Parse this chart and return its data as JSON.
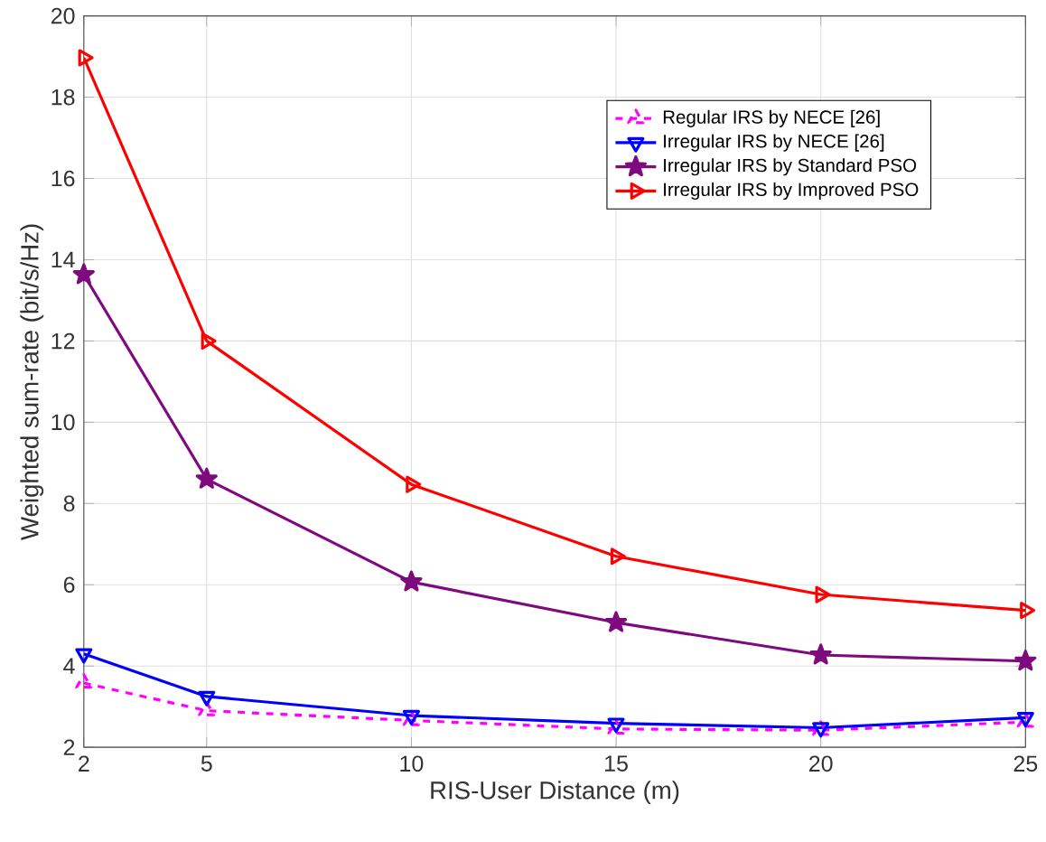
{
  "chart_data": {
    "type": "line",
    "xlabel": "RIS-User Distance (m)",
    "ylabel": "Weighted sum-rate (bit/s/Hz)",
    "x": [
      2,
      5,
      10,
      15,
      20,
      25
    ],
    "series": [
      {
        "name": "Regular IRS by NECE [26]",
        "color": "#ff00ff",
        "marker": "triangle",
        "line_style": "dashed",
        "values": [
          3.58,
          2.9,
          2.66,
          2.45,
          2.42,
          2.62
        ]
      },
      {
        "name": "Irregular IRS by NECE [26]",
        "color": "#0000ff",
        "marker": "triangle-down",
        "line_style": "solid",
        "values": [
          4.3,
          3.25,
          2.78,
          2.59,
          2.48,
          2.73
        ]
      },
      {
        "name": "Irregular IRS by Standard PSO",
        "color": "#7e0a7e",
        "marker": "star",
        "line_style": "solid",
        "values": [
          13.63,
          8.6,
          6.07,
          5.07,
          4.27,
          4.12
        ]
      },
      {
        "name": "Irregular IRS by Improved PSO",
        "color": "#ff0000",
        "marker": "triangle-right",
        "line_style": "solid",
        "values": [
          18.97,
          12,
          8.47,
          6.7,
          5.76,
          5.37
        ]
      }
    ],
    "xlim": [
      2,
      25
    ],
    "ylim": [
      2,
      20
    ],
    "xticks": [
      2,
      5,
      10,
      15,
      20,
      25
    ],
    "yticks": [
      2,
      4,
      6,
      8,
      10,
      12,
      14,
      16,
      18,
      20
    ],
    "grid": true,
    "legend": "top right"
  }
}
